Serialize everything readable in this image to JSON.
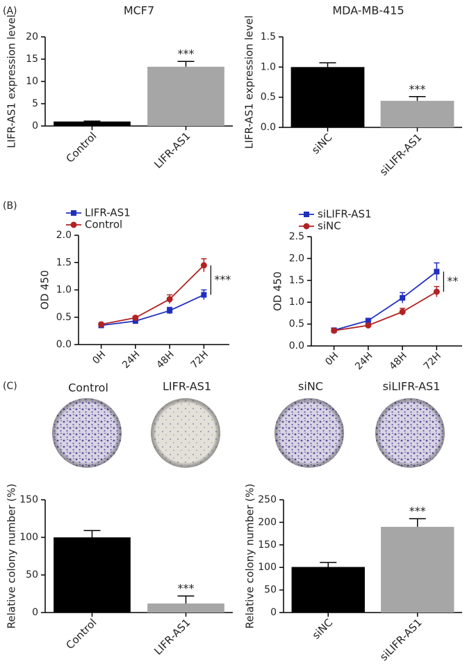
{
  "panels": [
    "(A)",
    "(B)",
    "(C)"
  ],
  "plates": [
    "Control",
    "LIFR-AS1",
    "siNC",
    "siLIFR-AS1"
  ],
  "chart_data": [
    {
      "type": "bar",
      "title": "MCF7",
      "ylabel": "LIFR-AS1 expression level",
      "categories": [
        "Control",
        "LIFR-AS1"
      ],
      "values": [
        1.0,
        13.3
      ],
      "errors": [
        0.1,
        1.2
      ],
      "colors": [
        "#000000",
        "#a6a6a6"
      ],
      "annotation": "***",
      "ylim": [
        0,
        20
      ],
      "yticks": [
        0,
        5,
        10,
        15,
        20
      ]
    },
    {
      "type": "bar",
      "title": "MDA-MB-415",
      "ylabel": "LIFR-AS1 expression level",
      "categories": [
        "siNC",
        "siLIFR-AS1"
      ],
      "values": [
        1.0,
        0.44
      ],
      "errors": [
        0.07,
        0.07
      ],
      "colors": [
        "#000000",
        "#a6a6a6"
      ],
      "annotation": "***",
      "ylim": [
        0,
        1.5
      ],
      "yticks": [
        {
          "value": 0,
          "label": "0.0"
        },
        0.5,
        {
          "value": 1,
          "label": "1.0"
        },
        1.5
      ]
    },
    {
      "type": "line",
      "ylabel": "OD 450",
      "categories": [
        "0H",
        "24H",
        "48H",
        "72H"
      ],
      "series": [
        {
          "name": "LIFR-AS1",
          "color": "#1f2fbf",
          "marker": "square",
          "values": [
            0.35,
            0.43,
            0.62,
            0.91
          ],
          "errors": [
            0.02,
            0.03,
            0.06,
            0.09
          ]
        },
        {
          "name": "Control",
          "color": "#b22222",
          "marker": "circle",
          "values": [
            0.37,
            0.49,
            0.83,
            1.45
          ],
          "errors": [
            0.02,
            0.03,
            0.08,
            0.12
          ]
        }
      ],
      "annotation": "***",
      "legend": "top-left",
      "ylim": [
        0,
        2
      ],
      "yticks": [
        {
          "value": 0,
          "label": "0.0"
        },
        0.5,
        {
          "value": 1,
          "label": "1.0"
        },
        1.5,
        {
          "value": 2,
          "label": "2.0"
        }
      ]
    },
    {
      "type": "line",
      "ylabel": "OD 450",
      "categories": [
        "0H",
        "24H",
        "48H",
        "72H"
      ],
      "series": [
        {
          "name": "siLIFR-AS1",
          "color": "#1f2fbf",
          "marker": "square",
          "values": [
            0.36,
            0.58,
            1.1,
            1.7
          ],
          "errors": [
            0.02,
            0.04,
            0.12,
            0.2
          ]
        },
        {
          "name": "siNC",
          "color": "#b22222",
          "marker": "circle",
          "values": [
            0.35,
            0.47,
            0.78,
            1.24
          ],
          "errors": [
            0.02,
            0.03,
            0.08,
            0.12
          ]
        }
      ],
      "annotation": "**",
      "legend": "top-left",
      "ylim": [
        0,
        2.5
      ],
      "yticks": [
        {
          "value": 0,
          "label": "0.0"
        },
        0.5,
        {
          "value": 1,
          "label": "1.0"
        },
        1.5,
        {
          "value": 2,
          "label": "2.0"
        },
        2.5
      ]
    },
    {
      "type": "bar",
      "ylabel": "Relative colony number (%)",
      "categories": [
        "Control",
        "LIFR-AS1"
      ],
      "values": [
        100,
        12
      ],
      "errors": [
        9,
        10
      ],
      "colors": [
        "#000000",
        "#a6a6a6"
      ],
      "annotation": "***",
      "ylim": [
        0,
        150
      ],
      "yticks": [
        0,
        50,
        100,
        150
      ]
    },
    {
      "type": "bar",
      "ylabel": "Relative colony number (%)",
      "categories": [
        "siNC",
        "siLIFR-AS1"
      ],
      "values": [
        101,
        190
      ],
      "errors": [
        10,
        18
      ],
      "colors": [
        "#000000",
        "#a6a6a6"
      ],
      "annotation": "***",
      "ylim": [
        0,
        250
      ],
      "yticks": [
        0,
        50,
        100,
        150,
        200,
        250
      ]
    }
  ]
}
